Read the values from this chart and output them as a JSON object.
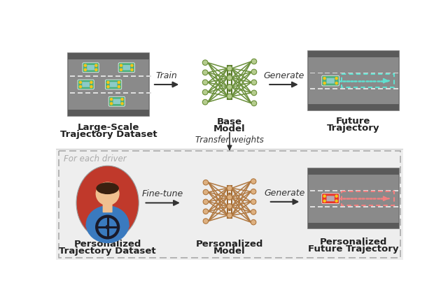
{
  "fig_width": 6.4,
  "fig_height": 4.18,
  "bg_color": "#ffffff",
  "top_bg": "#ffffff",
  "bottom_bg": "#eeeeee",
  "road_color": "#8a8a8a",
  "road_dark": "#5a5a5a",
  "car_green": "#4caf7d",
  "car_red": "#e8342a",
  "car_blue_tint": "#a8d8e8",
  "nn_green_node": "#b5cc8e",
  "nn_green_line": "#6a8f3a",
  "nn_green_center": "#5a7a2a",
  "nn_brown_node": "#ddb080",
  "nn_brown_line": "#b07840",
  "nn_brown_center": "#a06830",
  "arrow_color": "#333333",
  "text_train": "Train",
  "text_generate": "Generate",
  "text_finetune": "Fine-tune",
  "text_generate2": "Generate",
  "text_transfer": "Transfer weights",
  "text_ds1_l1": "Large-Scale",
  "text_ds1_l2": "Trajectory Dataset",
  "text_bm_l1": "Base",
  "text_bm_l2": "Model",
  "text_ft_l1": "Future",
  "text_ft_l2": "Trajectory",
  "text_driver_label": "For each driver",
  "text_pds_l1": "Personalized",
  "text_pds_l2": "Trajectory Dataset",
  "text_pm_l1": "Personalized",
  "text_pm_l2": "Model",
  "text_pft_l1": "Personalized",
  "text_pft_l2": "Future Trajectory",
  "divider_color": "#cccccc",
  "label_color": "#222222",
  "for_each_color": "#aaaaaa",
  "yellow": "#f5c518",
  "white": "#ffffff",
  "traj_cyan": "#60e0d0",
  "traj_pink": "#f08080"
}
